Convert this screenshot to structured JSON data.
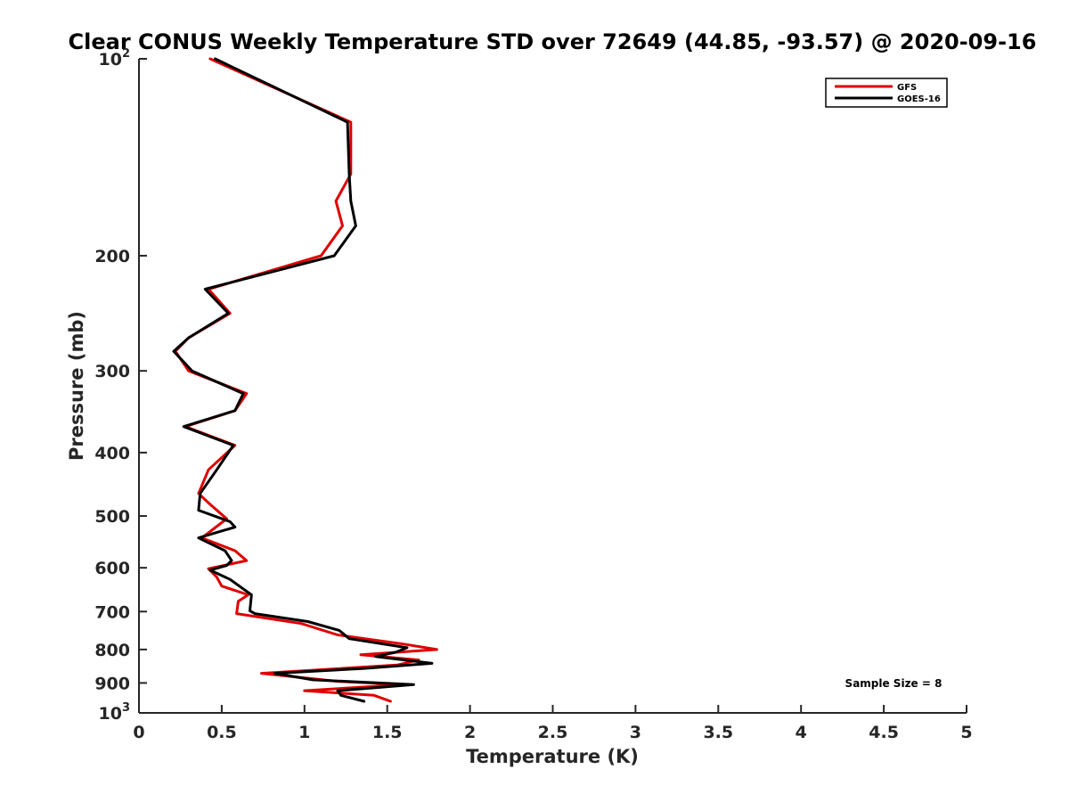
{
  "chart_data": {
    "type": "line",
    "title": "Clear CONUS Weekly Temperature STD over 72649 (44.85, -93.57) @ 2020-09-16",
    "xlabel": "Temperature (K)",
    "ylabel": "Pressure (mb)",
    "xlim": [
      0,
      5
    ],
    "ylim": [
      1000,
      100
    ],
    "yscale": "log",
    "y_reversed": true,
    "xticks": [
      0,
      0.5,
      1,
      1.5,
      2,
      2.5,
      3,
      3.5,
      4,
      4.5,
      5
    ],
    "xtick_labels": [
      "0",
      "0.5",
      "1",
      "1.5",
      "2",
      "2.5",
      "3",
      "3.5",
      "4",
      "4.5",
      "5"
    ],
    "yticks": [
      100,
      200,
      300,
      400,
      500,
      600,
      700,
      800,
      900,
      1000
    ],
    "ytick_labels": [
      {
        "base": "10",
        "exp": "2"
      },
      {
        "base": "200",
        "exp": ""
      },
      {
        "base": "300",
        "exp": ""
      },
      {
        "base": "400",
        "exp": ""
      },
      {
        "base": "500",
        "exp": ""
      },
      {
        "base": "600",
        "exp": ""
      },
      {
        "base": "700",
        "exp": ""
      },
      {
        "base": "800",
        "exp": ""
      },
      {
        "base": "900",
        "exp": ""
      },
      {
        "base": "10",
        "exp": "3"
      }
    ],
    "grid": false,
    "legend_position": "top-right",
    "annotation": "Sample Size = 8",
    "series": [
      {
        "name": "GFS",
        "color": "#e00000",
        "points": [
          [
            0.43,
            100
          ],
          [
            1.28,
            125
          ],
          [
            1.28,
            150
          ],
          [
            1.19,
            165
          ],
          [
            1.23,
            180
          ],
          [
            1.1,
            200
          ],
          [
            0.42,
            225
          ],
          [
            0.55,
            245
          ],
          [
            0.3,
            267
          ],
          [
            0.22,
            280
          ],
          [
            0.3,
            300
          ],
          [
            0.65,
            325
          ],
          [
            0.58,
            345
          ],
          [
            0.28,
            365
          ],
          [
            0.58,
            390
          ],
          [
            0.42,
            425
          ],
          [
            0.36,
            462
          ],
          [
            0.43,
            480
          ],
          [
            0.53,
            505
          ],
          [
            0.38,
            540
          ],
          [
            0.58,
            565
          ],
          [
            0.65,
            585
          ],
          [
            0.42,
            602
          ],
          [
            0.47,
            620
          ],
          [
            0.5,
            640
          ],
          [
            0.66,
            660
          ],
          [
            0.6,
            675
          ],
          [
            0.59,
            705
          ],
          [
            0.98,
            730
          ],
          [
            1.2,
            760
          ],
          [
            1.6,
            785
          ],
          [
            1.8,
            800
          ],
          [
            1.34,
            815
          ],
          [
            1.69,
            830
          ],
          [
            1.56,
            845
          ],
          [
            0.74,
            870
          ],
          [
            1.2,
            895
          ],
          [
            1.6,
            905
          ],
          [
            1.0,
            925
          ],
          [
            1.42,
            940
          ],
          [
            1.52,
            960
          ]
        ]
      },
      {
        "name": "GOES-16",
        "color": "#000000",
        "points": [
          [
            0.46,
            100
          ],
          [
            1.26,
            125
          ],
          [
            1.27,
            150
          ],
          [
            1.28,
            165
          ],
          [
            1.31,
            180
          ],
          [
            1.18,
            200
          ],
          [
            0.4,
            225
          ],
          [
            0.54,
            245
          ],
          [
            0.3,
            267
          ],
          [
            0.21,
            280
          ],
          [
            0.32,
            300
          ],
          [
            0.63,
            325
          ],
          [
            0.58,
            345
          ],
          [
            0.27,
            365
          ],
          [
            0.57,
            390
          ],
          [
            0.47,
            425
          ],
          [
            0.37,
            462
          ],
          [
            0.36,
            490
          ],
          [
            0.55,
            510
          ],
          [
            0.58,
            520
          ],
          [
            0.36,
            540
          ],
          [
            0.52,
            565
          ],
          [
            0.56,
            585
          ],
          [
            0.53,
            595
          ],
          [
            0.43,
            605
          ],
          [
            0.55,
            625
          ],
          [
            0.68,
            660
          ],
          [
            0.67,
            698
          ],
          [
            0.7,
            705
          ],
          [
            1.02,
            725
          ],
          [
            1.21,
            748
          ],
          [
            1.27,
            770
          ],
          [
            1.62,
            795
          ],
          [
            1.55,
            808
          ],
          [
            1.43,
            820
          ],
          [
            1.77,
            840
          ],
          [
            1.36,
            855
          ],
          [
            0.82,
            870
          ],
          [
            1.05,
            890
          ],
          [
            1.66,
            905
          ],
          [
            1.2,
            925
          ],
          [
            1.22,
            940
          ],
          [
            1.36,
            960
          ]
        ]
      }
    ]
  }
}
